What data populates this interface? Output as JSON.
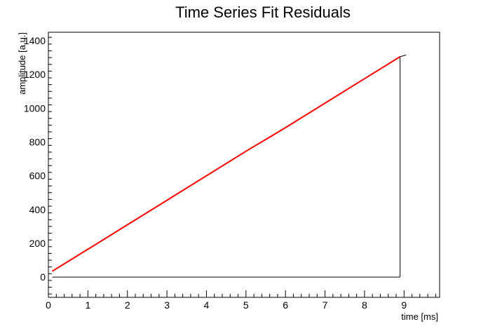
{
  "chart_data": {
    "type": "line",
    "title": "Time Series Fit Residuals",
    "xlabel": "time [ms]",
    "ylabel": "amplitude [a.u.]",
    "xlim": [
      0,
      9.9
    ],
    "ylim": [
      -120,
      1450
    ],
    "x_ticks": [
      0,
      1,
      2,
      3,
      4,
      5,
      6,
      7,
      8,
      9
    ],
    "y_ticks": [
      0,
      200,
      400,
      600,
      800,
      1000,
      1200,
      1400
    ],
    "grid": false,
    "legend": "none",
    "colors": {
      "fit": "#ff0000",
      "data": "#000000",
      "frame": "#000000"
    },
    "series": [
      {
        "style": "black data line",
        "x": [
          0.1,
          1.0,
          2.0,
          3.0,
          4.0,
          5.0,
          6.0,
          7.0,
          8.0,
          8.9
        ],
        "y": [
          35,
          165,
          310,
          455,
          600,
          745,
          885,
          1030,
          1175,
          1305
        ]
      },
      {
        "style": "black tail",
        "x": [
          8.9,
          9.05
        ],
        "y": [
          1305,
          1315
        ]
      },
      {
        "style": "black vertical drop",
        "x": [
          8.9,
          8.9
        ],
        "y": [
          1305,
          0
        ]
      },
      {
        "style": "black baseline",
        "x": [
          0.1,
          8.9
        ],
        "y": [
          0,
          0
        ]
      },
      {
        "style": "red fit line",
        "x": [
          0.1,
          1.0,
          2.0,
          3.0,
          4.0,
          5.0,
          6.0,
          7.0,
          8.0,
          8.9
        ],
        "y": [
          35,
          165,
          310,
          455,
          600,
          745,
          885,
          1030,
          1175,
          1305
        ]
      }
    ]
  }
}
